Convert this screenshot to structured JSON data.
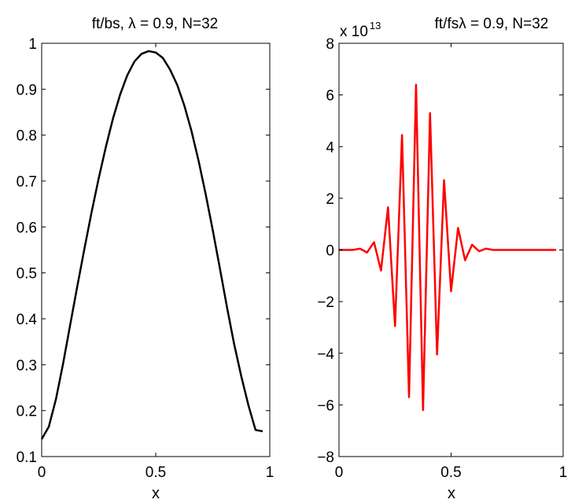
{
  "chart_data": [
    {
      "type": "line",
      "title": "ft/bs, λ = 0.9, N=32",
      "xlabel": "x",
      "ylabel": "",
      "xlim": [
        0,
        1
      ],
      "ylim": [
        0.1,
        1
      ],
      "xticks": [
        "0",
        "0.5",
        "1"
      ],
      "yticks": [
        "0.1",
        "0.2",
        "0.3",
        "0.4",
        "0.5",
        "0.6",
        "0.7",
        "0.8",
        "0.9",
        "1"
      ],
      "grid": false,
      "color": "#000000",
      "series": [
        {
          "x": [
            0,
            0.03125,
            0.0625,
            0.09375,
            0.125,
            0.15625,
            0.1875,
            0.21875,
            0.25,
            0.28125,
            0.3125,
            0.34375,
            0.375,
            0.40625,
            0.4375,
            0.46875,
            0.5,
            0.53125,
            0.5625,
            0.59375,
            0.625,
            0.65625,
            0.6875,
            0.71875,
            0.75,
            0.78125,
            0.8125,
            0.84375,
            0.875,
            0.90625,
            0.9375,
            0.96875
          ],
          "values": [
            0.138,
            0.165,
            0.225,
            0.302,
            0.387,
            0.471,
            0.553,
            0.632,
            0.706,
            0.774,
            0.836,
            0.888,
            0.93,
            0.96,
            0.977,
            0.983,
            0.98,
            0.968,
            0.943,
            0.91,
            0.865,
            0.81,
            0.745,
            0.672,
            0.593,
            0.51,
            0.425,
            0.345,
            0.275,
            0.212,
            0.158,
            0.155
          ]
        }
      ]
    },
    {
      "type": "line",
      "title": "ft/fsλ = 0.9, N=32",
      "xlabel": "x",
      "ylabel": "",
      "y_exponent_base": "x 10",
      "y_exponent_power": "13",
      "xlim": [
        0,
        1
      ],
      "ylim": [
        -8,
        8
      ],
      "xticks": [
        "0",
        "0.5",
        "1"
      ],
      "yticks": [
        "−8",
        "−6",
        "−4",
        "−2",
        "0",
        "2",
        "4",
        "6",
        "8"
      ],
      "grid": false,
      "color": "#ff0000",
      "series": [
        {
          "x": [
            0,
            0.03125,
            0.0625,
            0.09375,
            0.125,
            0.15625,
            0.1875,
            0.21875,
            0.25,
            0.28125,
            0.3125,
            0.34375,
            0.375,
            0.40625,
            0.4375,
            0.46875,
            0.5,
            0.53125,
            0.5625,
            0.59375,
            0.625,
            0.65625,
            0.6875,
            0.71875,
            0.75,
            0.78125,
            0.8125,
            0.84375,
            0.875,
            0.90625,
            0.9375,
            0.96875
          ],
          "values": [
            0,
            0,
            0,
            0.05,
            -0.1,
            0.3,
            -0.8,
            1.65,
            -2.95,
            4.45,
            -5.7,
            6.4,
            -6.2,
            5.3,
            -4.05,
            2.7,
            -1.6,
            0.85,
            -0.4,
            0.2,
            -0.05,
            0.05,
            0,
            0,
            0,
            0,
            0,
            0,
            0,
            0,
            0,
            0
          ]
        }
      ]
    }
  ]
}
